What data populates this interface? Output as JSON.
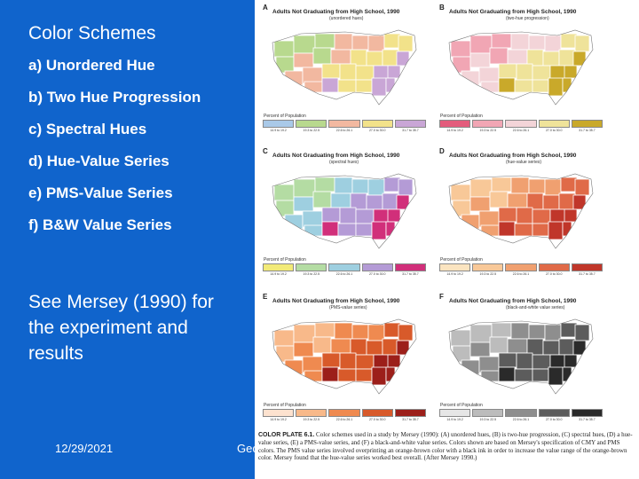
{
  "slide": {
    "title": "Color Schemes",
    "items": [
      "a) Unordered Hue",
      "b) Two Hue Progression",
      "c) Spectral Hues",
      "d) Hue-Value Series",
      "e) PMS-Value Series",
      "f) B&W Value Series"
    ],
    "note": "See Mersey (1990) for the experiment and results",
    "date": "12/29/2021",
    "footer": "Geo"
  },
  "plate": {
    "panel_title": "Adults Not Graduating from High School, 1990",
    "percent_label": "Percent of Population",
    "ranges": [
      "14.9 to 19.2",
      "19.3 to 22.5",
      "22.6 to 26.1",
      "27.0 to 30.0",
      "31.7 to 35.7"
    ],
    "panels": [
      {
        "letter": "A",
        "subtitle": "(unordered hues)",
        "colors": [
          "#a9c9e8",
          "#b8d98e",
          "#f2b8a0",
          "#f2e28a",
          "#c9a6d6"
        ]
      },
      {
        "letter": "B",
        "subtitle": "(two-hue progression)",
        "colors": [
          "#e35c7c",
          "#f1a6b4",
          "#f3d4d8",
          "#efe39a",
          "#c9a92a"
        ]
      },
      {
        "letter": "C",
        "subtitle": "(spectral hues)",
        "colors": [
          "#f2ea78",
          "#b4dca3",
          "#9ecfe0",
          "#b49bd6",
          "#d12f7a"
        ]
      },
      {
        "letter": "D",
        "subtitle": "(hue-value series)",
        "colors": [
          "#fbe4c0",
          "#f8c898",
          "#f0a070",
          "#e06a48",
          "#c0362a"
        ]
      },
      {
        "letter": "E",
        "subtitle": "(PMS-value series)",
        "colors": [
          "#fde2cf",
          "#f8b98a",
          "#ef8a50",
          "#d85a2a",
          "#9c1f1a"
        ]
      },
      {
        "letter": "F",
        "subtitle": "(black-and-white value series)",
        "colors": [
          "#e6e6e6",
          "#bcbcbc",
          "#8e8e8e",
          "#5c5c5c",
          "#2a2a2a"
        ]
      }
    ],
    "caption_label": "COLOR PLATE 6.1.",
    "caption_text": "Color schemes used in a study by Mersey (1990): (A) unordered hues, (B) is two-hue progression, (C) spectral hues, (D) a hue-value series, (E) a PMS-value series, and (F) a black-and-white value series. Colors shown are based on Mersey's specification of CMY and PMS colors. The PMS value series involved overprinting an orange-brown color with a black ink in order to increase the value range of the orange-brown color. Mersey found that the hue-value series worked best overall. (After Mersey 1990.)"
  }
}
